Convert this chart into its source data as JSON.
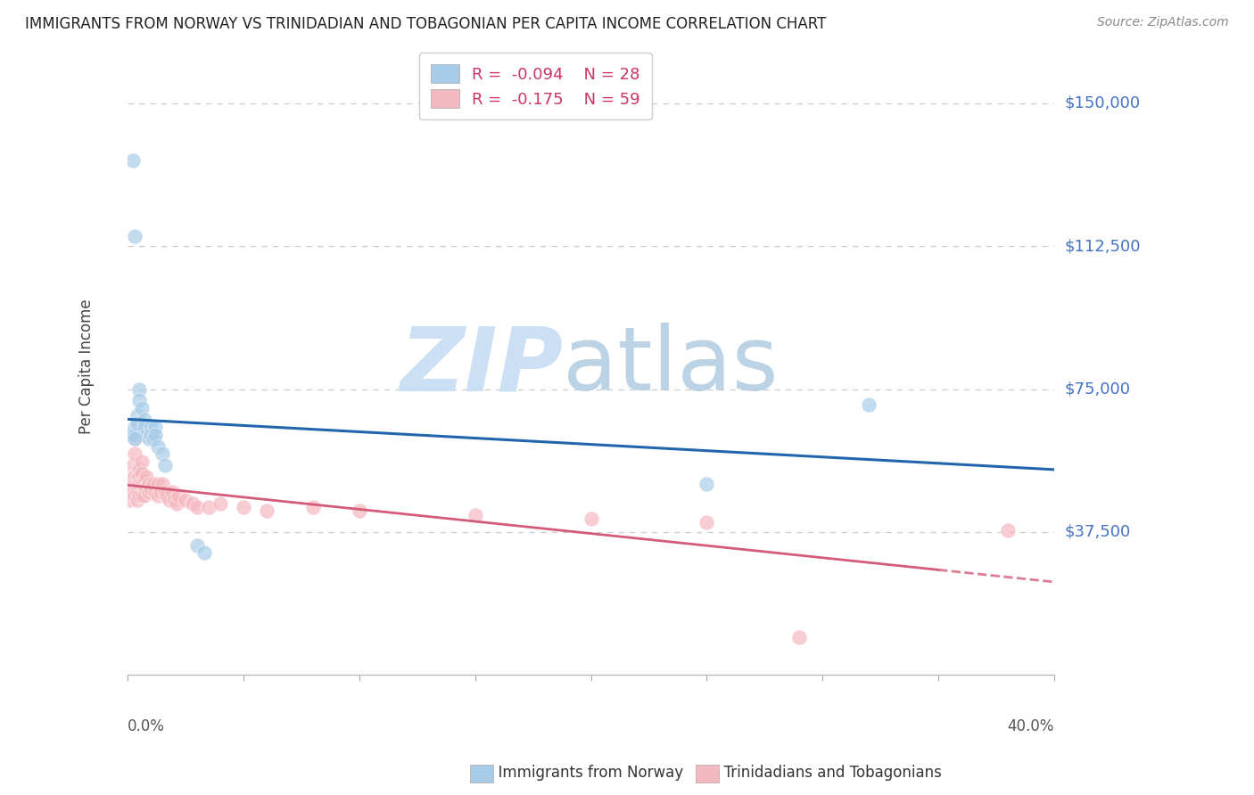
{
  "title": "IMMIGRANTS FROM NORWAY VS TRINIDADIAN AND TOBAGONIAN PER CAPITA INCOME CORRELATION CHART",
  "source": "Source: ZipAtlas.com",
  "ylabel": "Per Capita Income",
  "ytick_labels": [
    "$37,500",
    "$75,000",
    "$112,500",
    "$150,000"
  ],
  "ytick_values": [
    37500,
    75000,
    112500,
    150000
  ],
  "ymin": 0,
  "ymax": 162000,
  "xmin": 0.0,
  "xmax": 0.4,
  "legend_norway": {
    "R": "-0.094",
    "N": "28"
  },
  "legend_tt": {
    "R": "-0.175",
    "N": "59"
  },
  "norway_color": "#a8cce8",
  "tt_color": "#f4b8c1",
  "norway_line_color": "#2166ac",
  "tt_line_color": "#d45b78",
  "norway_points_x": [
    0.001,
    0.002,
    0.002,
    0.003,
    0.003,
    0.003,
    0.004,
    0.004,
    0.005,
    0.005,
    0.006,
    0.007,
    0.007,
    0.008,
    0.009,
    0.01,
    0.01,
    0.011,
    0.012,
    0.012,
    0.013,
    0.015,
    0.016,
    0.03,
    0.033,
    0.25,
    0.32,
    0.003
  ],
  "norway_points_y": [
    63000,
    135000,
    63000,
    115000,
    65000,
    63000,
    68000,
    66000,
    75000,
    72000,
    70000,
    67000,
    65000,
    63000,
    62000,
    65000,
    63000,
    62000,
    65000,
    63000,
    60000,
    58000,
    55000,
    34000,
    32000,
    50000,
    71000,
    62000
  ],
  "tt_points_x": [
    0.001,
    0.001,
    0.001,
    0.002,
    0.002,
    0.002,
    0.002,
    0.003,
    0.003,
    0.003,
    0.003,
    0.003,
    0.004,
    0.004,
    0.004,
    0.004,
    0.005,
    0.005,
    0.005,
    0.005,
    0.006,
    0.006,
    0.006,
    0.006,
    0.007,
    0.007,
    0.007,
    0.008,
    0.008,
    0.009,
    0.009,
    0.01,
    0.011,
    0.012,
    0.013,
    0.013,
    0.014,
    0.015,
    0.016,
    0.017,
    0.018,
    0.019,
    0.02,
    0.021,
    0.022,
    0.025,
    0.028,
    0.03,
    0.035,
    0.04,
    0.05,
    0.06,
    0.08,
    0.1,
    0.15,
    0.2,
    0.25,
    0.29,
    0.38
  ],
  "tt_points_y": [
    50000,
    48000,
    46000,
    55000,
    52000,
    50000,
    48000,
    62000,
    58000,
    52000,
    50000,
    47000,
    52000,
    50000,
    48000,
    46000,
    54000,
    52000,
    50000,
    47000,
    56000,
    53000,
    50000,
    47000,
    51000,
    49000,
    47000,
    52000,
    49000,
    50000,
    48000,
    49000,
    50000,
    48000,
    50000,
    47000,
    48000,
    50000,
    48000,
    47000,
    46000,
    48000,
    46000,
    45000,
    47000,
    46000,
    45000,
    44000,
    44000,
    45000,
    44000,
    43000,
    44000,
    43000,
    42000,
    41000,
    40000,
    10000,
    38000
  ]
}
